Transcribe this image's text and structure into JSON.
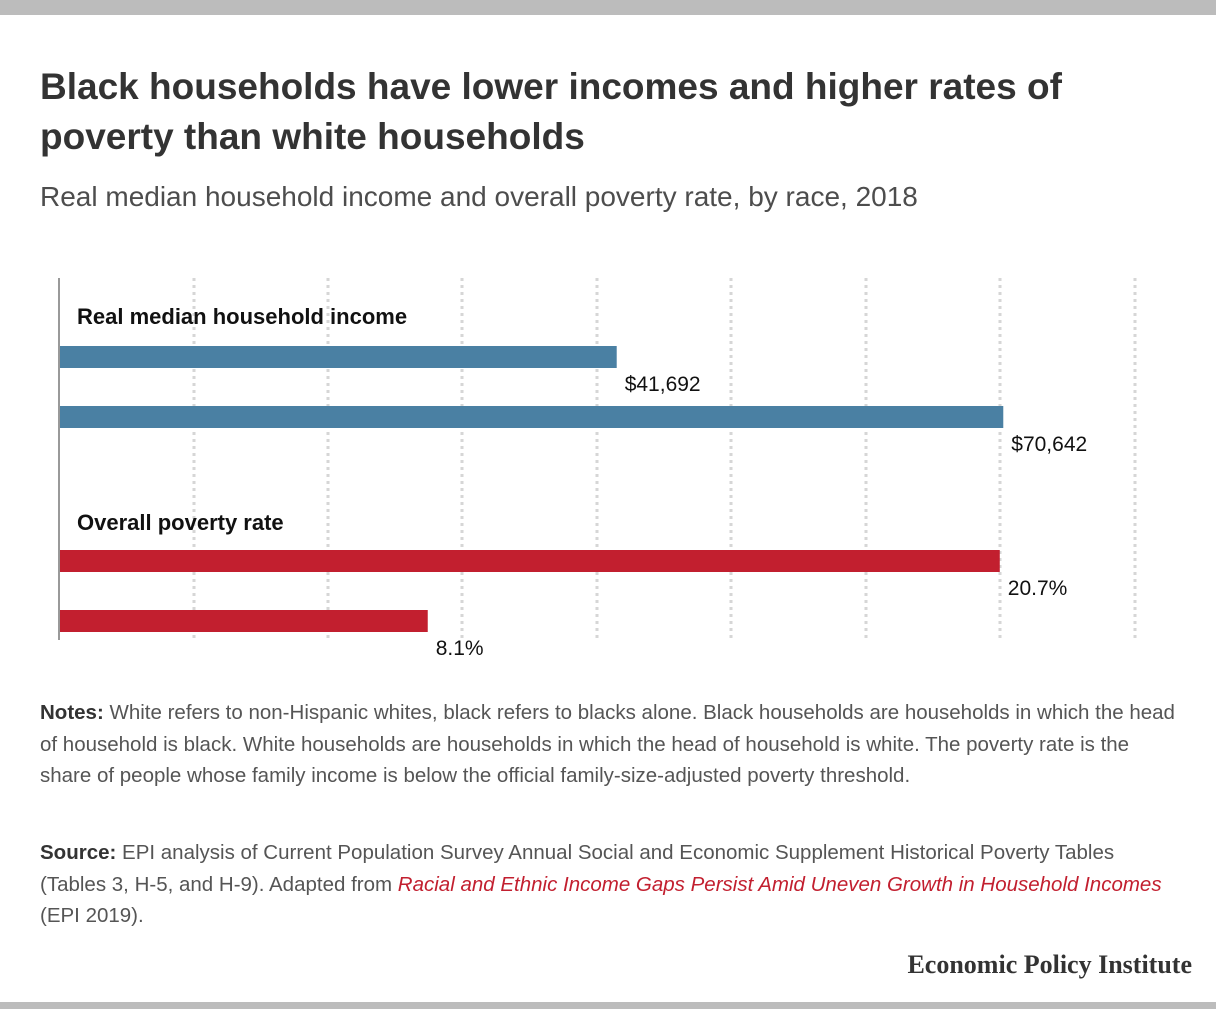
{
  "header": {
    "title": "Black households have lower incomes and higher rates of poverty than white households",
    "subtitle": "Real median household income and overall poverty rate, by race, 2018"
  },
  "footer": {
    "notes_label": "Notes:",
    "notes_text": " White refers to non-Hispanic whites, black refers to blacks alone. Black households are households in which the head of household is black. White households are households in which the head of household is white. The poverty rate is the share of people whose family income is below the official family-size-adjusted poverty threshold.",
    "source_label": "Source:",
    "source_text": " EPI analysis of Current Population Survey Annual Social and Economic Supplement Historical Poverty Tables (Tables 3, H-5, and H-9). Adapted from ",
    "source_link": "Racial and Ethnic Income Gaps Persist Amid Uneven Growth in Household Incomes",
    "source_tail": " (EPI 2019).",
    "brand": "Economic Policy Institute"
  },
  "colors": {
    "income_bar": "#4a80a3",
    "poverty_bar": "#c21f2f",
    "grid": "#d6d6d6",
    "axis": "#999999"
  },
  "chart_data": {
    "type": "bar",
    "orientation": "horizontal",
    "grid": true,
    "groups": [
      {
        "label": "Real median household income",
        "color": "#4a80a3",
        "scale_max": 85000,
        "bars": [
          {
            "value": 41692,
            "label": "$41,692"
          },
          {
            "value": 70642,
            "label": "$70,642"
          }
        ]
      },
      {
        "label": "Overall poverty rate",
        "color": "#c21f2f",
        "scale_max": 25,
        "bars": [
          {
            "value": 20.7,
            "label": "20.7%"
          },
          {
            "value": 8.1,
            "label": "8.1%"
          }
        ]
      }
    ]
  }
}
